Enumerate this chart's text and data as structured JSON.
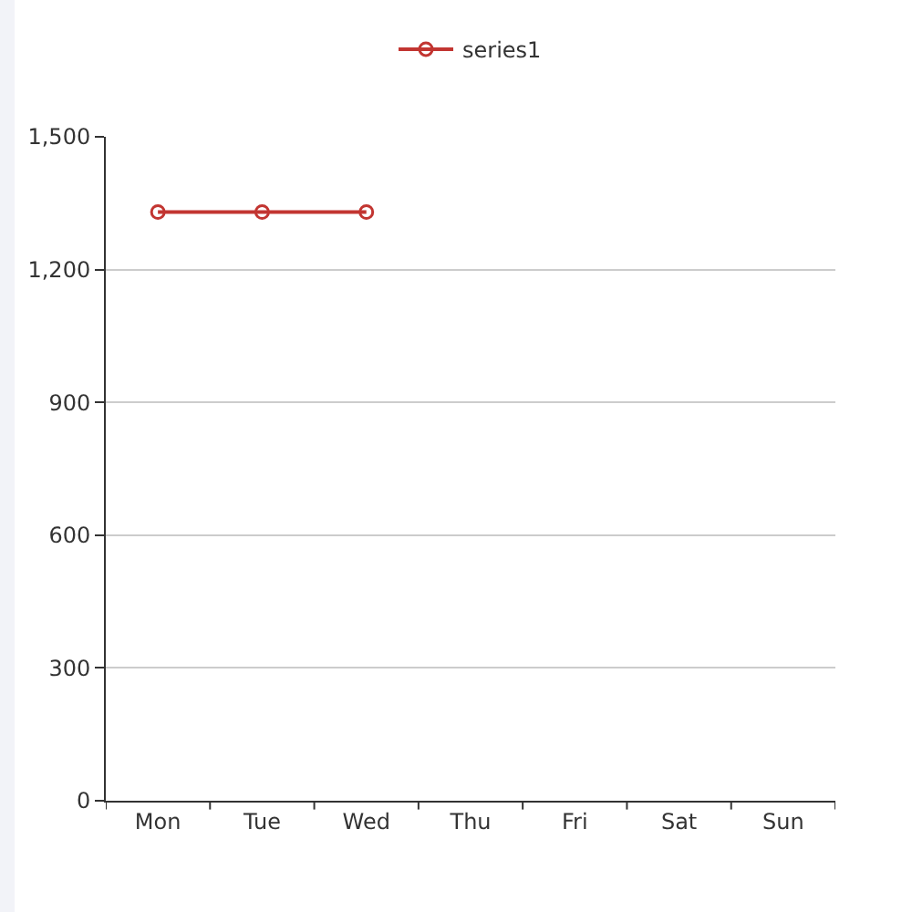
{
  "chart_data": {
    "type": "line",
    "categories": [
      "Mon",
      "Tue",
      "Wed",
      "Thu",
      "Fri",
      "Sat",
      "Sun"
    ],
    "series": [
      {
        "name": "series1",
        "color": "#c23531",
        "values": [
          1330,
          1330,
          1330,
          null,
          null,
          null,
          null
        ]
      }
    ],
    "ylim": [
      0,
      1500
    ],
    "yticks": [
      0,
      300,
      600,
      900,
      {
        "value": 1200,
        "label": "1,200"
      },
      {
        "value": 1500,
        "label": "1,500"
      }
    ],
    "grid": "y",
    "legend": "top",
    "marker": "circle"
  }
}
